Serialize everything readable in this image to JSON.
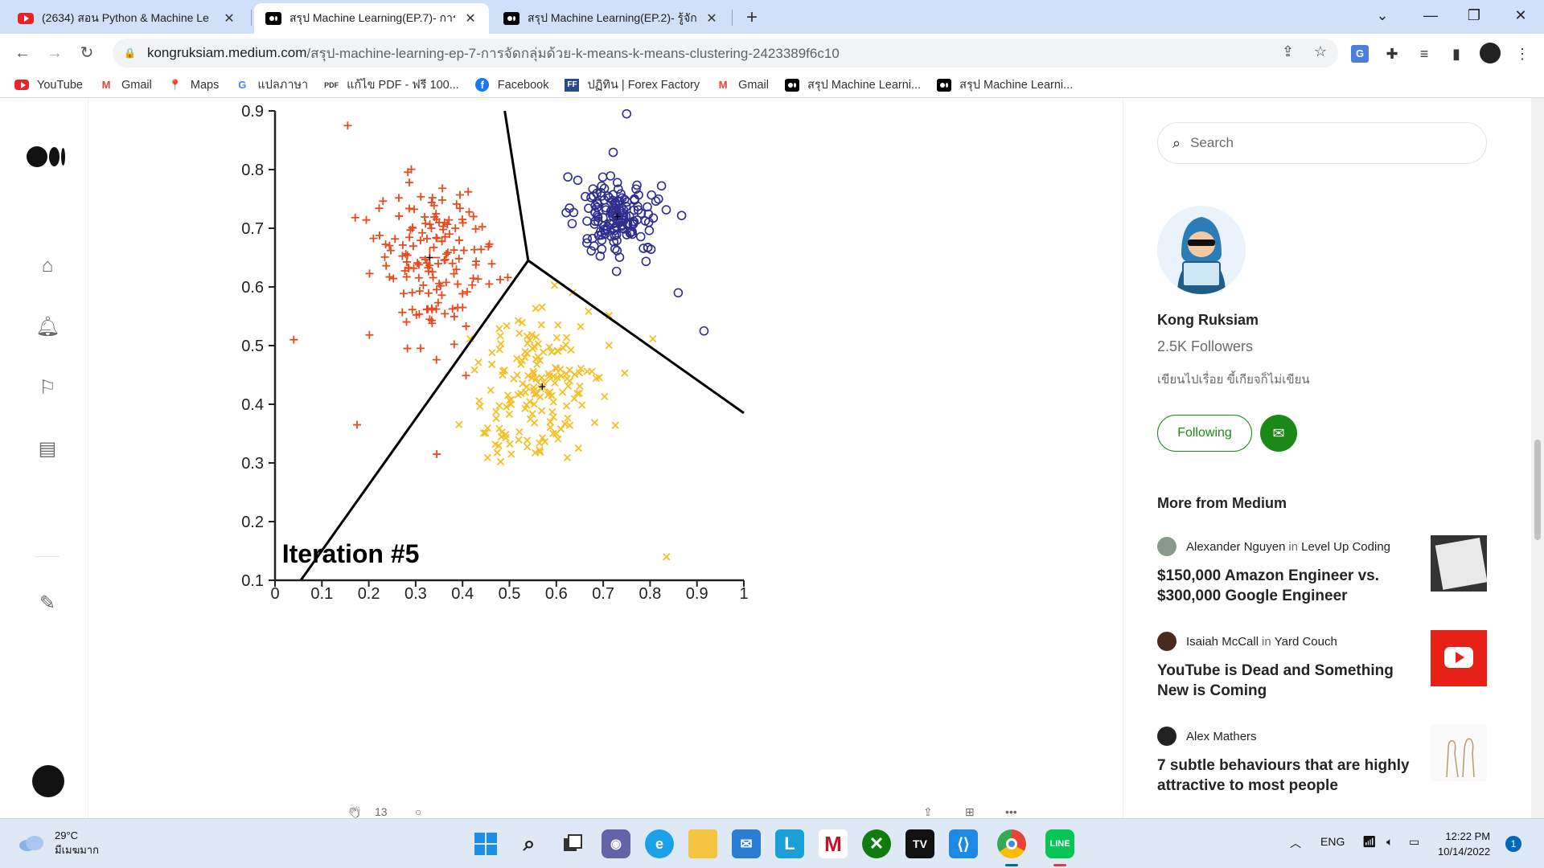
{
  "browser": {
    "tabs": [
      {
        "title": "(2634) สอน Python & Machine Le",
        "favicon": "youtube-icon"
      },
      {
        "title": "สรุป Machine Learning(EP.7)- การ",
        "favicon": "medium-icon",
        "active": true
      },
      {
        "title": "สรุป Machine Learning(EP.2)- รู้จัก",
        "favicon": "medium-icon"
      }
    ],
    "url_host": "kongruksiam.medium.com",
    "url_path": "/สรุป-machine-learning-ep-7-การจัดกลุ่มด้วย-k-means-k-means-clustering-2423389f6c10",
    "bookmarks": [
      {
        "label": "YouTube",
        "icon": "youtube-icon"
      },
      {
        "label": "Gmail",
        "icon": "gmail-icon"
      },
      {
        "label": "Maps",
        "icon": "maps-icon"
      },
      {
        "label": "แปลภาษา",
        "icon": "translate-icon"
      },
      {
        "label": "แก้ไข PDF - ฟรี 100...",
        "icon": "pdf-icon"
      },
      {
        "label": "Facebook",
        "icon": "facebook-icon"
      },
      {
        "label": "ปฏิทิน | Forex Factory",
        "icon": "forex-icon"
      },
      {
        "label": "Gmail",
        "icon": "gmail-icon"
      },
      {
        "label": "สรุป Machine Learni...",
        "icon": "medium-icon"
      },
      {
        "label": "สรุป Machine Learni...",
        "icon": "medium-icon"
      }
    ]
  },
  "article": {
    "clap_count": "13",
    "chart_data": {
      "type": "scatter",
      "title": "Iteration #5",
      "xlim": [
        0,
        1
      ],
      "ylim": [
        0.1,
        0.9
      ],
      "xticks": [
        "0",
        "0.1",
        "0.2",
        "0.3",
        "0.4",
        "0.5",
        "0.6",
        "0.7",
        "0.8",
        "0.9",
        "1"
      ],
      "yticks": [
        "0.1",
        "0.2",
        "0.3",
        "0.4",
        "0.5",
        "0.6",
        "0.7",
        "0.8",
        "0.9"
      ],
      "clusters": [
        {
          "marker": "plus",
          "color": "#e8491d",
          "centroid": [
            0.33,
            0.65
          ],
          "spread": [
            0.09,
            0.1
          ],
          "count": 150
        },
        {
          "marker": "x",
          "color": "#f5c026",
          "centroid": [
            0.57,
            0.43
          ],
          "spread": [
            0.09,
            0.1
          ],
          "count": 170
        },
        {
          "marker": "circle",
          "color": "#2e2e8f",
          "centroid": [
            0.73,
            0.72
          ],
          "spread": [
            0.06,
            0.05
          ],
          "count": 150
        }
      ],
      "outliers": [
        {
          "marker": "plus",
          "x": 0.155,
          "y": 0.875
        },
        {
          "marker": "plus",
          "x": 0.04,
          "y": 0.51
        },
        {
          "marker": "plus",
          "x": 0.175,
          "y": 0.365
        },
        {
          "marker": "plus",
          "x": 0.345,
          "y": 0.315
        },
        {
          "marker": "circle",
          "x": 0.75,
          "y": 0.895
        },
        {
          "marker": "circle",
          "x": 0.915,
          "y": 0.525
        },
        {
          "marker": "circle",
          "x": 0.86,
          "y": 0.59
        },
        {
          "marker": "x",
          "x": 0.835,
          "y": 0.14
        }
      ],
      "boundaries": [
        [
          [
            0.49,
            0.9
          ],
          [
            0.54,
            0.645
          ]
        ],
        [
          [
            0.54,
            0.645
          ],
          [
            0.055,
            0.1
          ]
        ],
        [
          [
            0.54,
            0.645
          ],
          [
            1.0,
            0.385
          ]
        ]
      ]
    }
  },
  "sidebar": {
    "search_placeholder": "Search",
    "author_name": "Kong Ruksiam",
    "followers": "2.5K Followers",
    "bio": "เขียนไปเรื่อย ขี้เกียจก็ไม่เขียน",
    "following_label": "Following",
    "more_title": "More from Medium",
    "stories": [
      {
        "author": "Alexander Nguyen",
        "in": "in",
        "publication": "Level Up Coding",
        "headline": "$150,000 Amazon Engineer vs. $300,000 Google Engineer"
      },
      {
        "author": "Isaiah McCall",
        "in": "in",
        "publication": "Yard Couch",
        "headline": "YouTube is Dead and Something New is Coming"
      },
      {
        "author": "Alex Mathers",
        "in": "",
        "publication": "",
        "headline": "7 subtle behaviours that are highly attractive to most people"
      }
    ]
  },
  "taskbar": {
    "temp": "29°C",
    "weather_desc": "มีเมฆมาก",
    "lang": "ENG",
    "time": "12:22 PM",
    "date": "10/14/2022",
    "notifications": "1"
  }
}
